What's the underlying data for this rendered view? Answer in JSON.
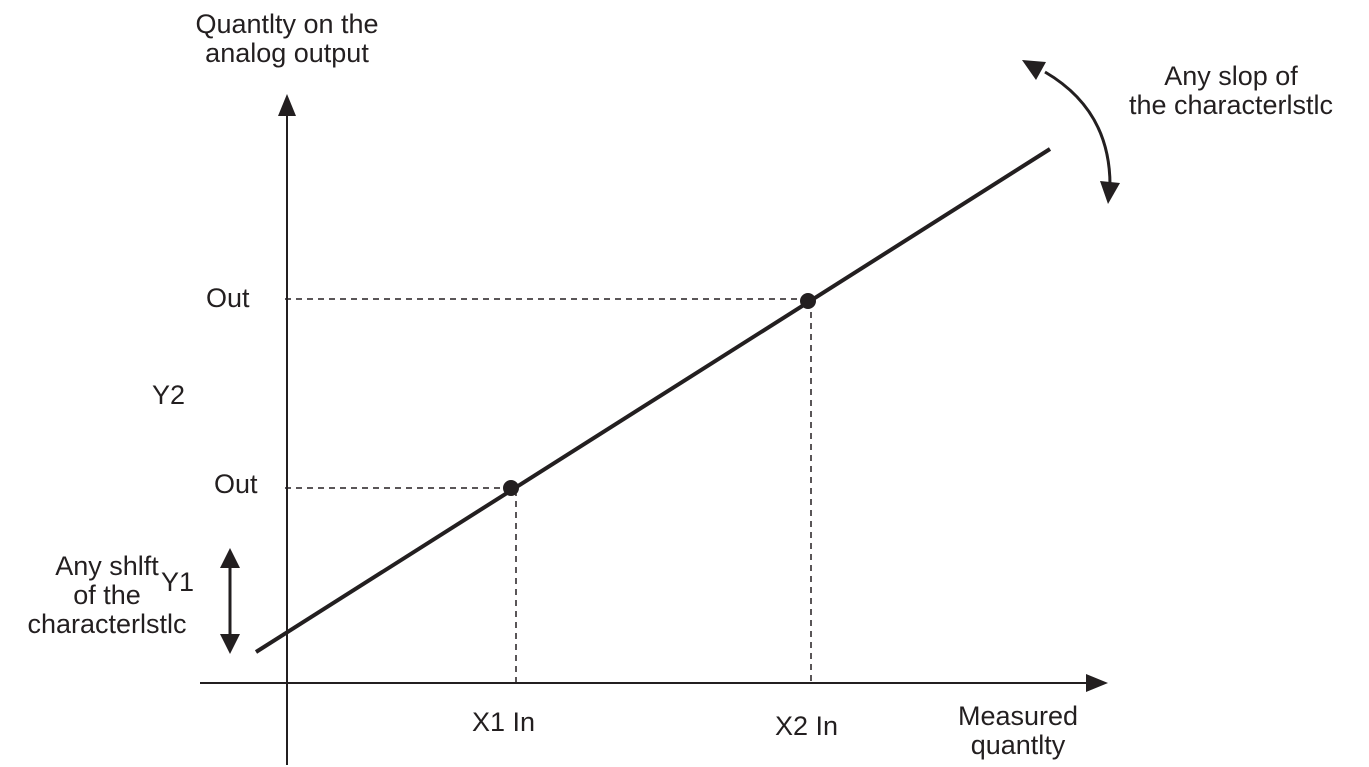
{
  "diagram": {
    "y_axis_label": "Quantlty on the\nanalog output",
    "x_axis_label": "Measured\nquantlty",
    "slope_label": "Any slop of\nthe characterlstlc",
    "shift_label": "Any shlft\nof the\ncharacterlstlc",
    "point_labels": {
      "out_upper": "Out",
      "out_lower": "Out",
      "y2": "Y2",
      "y1": "Y1",
      "x1": "X1 In",
      "x2": "X2 In"
    },
    "colors": {
      "ink": "#231f20",
      "background": "#ffffff"
    }
  }
}
